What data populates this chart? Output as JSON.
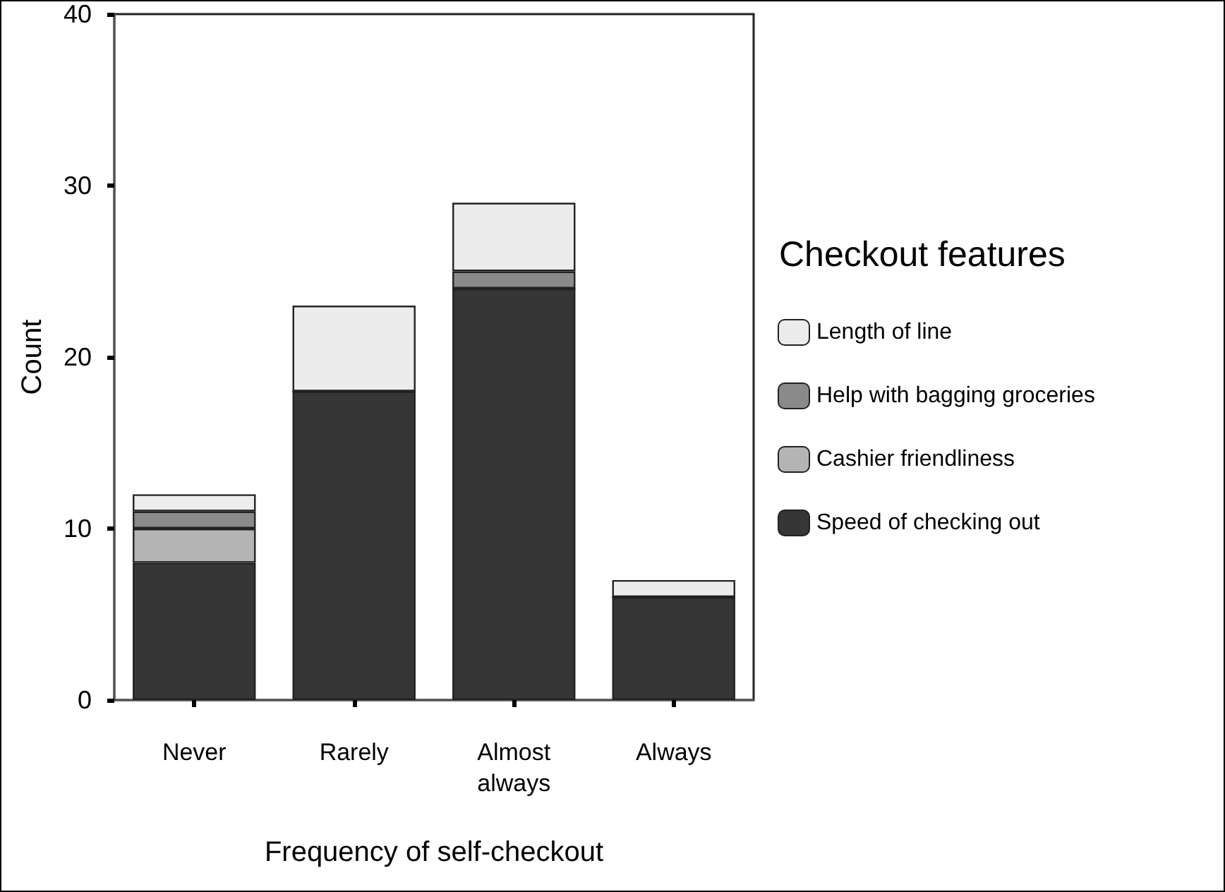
{
  "chart_data": {
    "type": "bar",
    "stacked": true,
    "xlabel": "Frequency of self-checkout",
    "ylabel": "Count",
    "legend_title": "Checkout features",
    "categories": [
      "Never",
      "Rarely",
      "Almost\nalways",
      "Always"
    ],
    "series": [
      {
        "name": "Speed of checking out",
        "color": "#363636",
        "values": [
          8,
          18,
          24,
          6
        ]
      },
      {
        "name": "Cashier friendliness",
        "color": "#b4b4b4",
        "values": [
          2,
          0,
          0,
          0
        ]
      },
      {
        "name": "Help with bagging groceries",
        "color": "#8a8a8a",
        "values": [
          1,
          0,
          1,
          0
        ]
      },
      {
        "name": "Length of line",
        "color": "#ececec",
        "values": [
          1,
          5,
          4,
          1
        ]
      }
    ],
    "ylim": [
      0,
      40
    ],
    "yticks": [
      0,
      10,
      20,
      30,
      40
    ],
    "grid": false,
    "legend": "right"
  }
}
